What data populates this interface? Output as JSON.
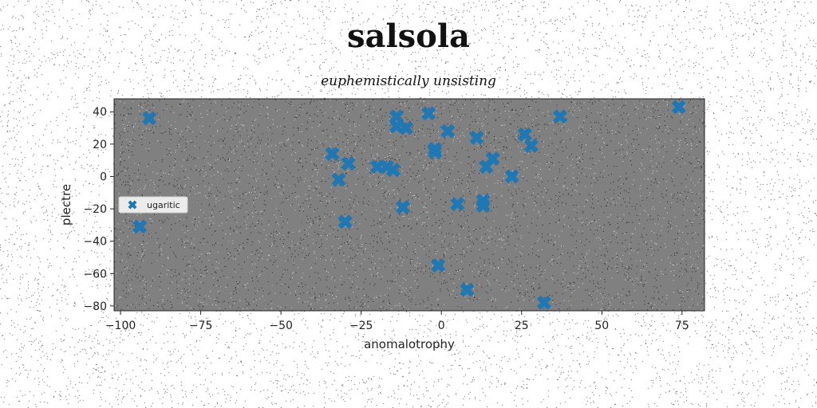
{
  "chart_data": {
    "type": "scatter",
    "title": "salsola",
    "subtitle": "euphemistically unsisting",
    "xlabel": "anomalotrophy",
    "ylabel": "plectre",
    "xlim": [
      -102,
      82
    ],
    "ylim": [
      -83,
      48
    ],
    "xticks": [
      -100,
      -75,
      -50,
      -25,
      0,
      25,
      50,
      75
    ],
    "yticks": [
      -80,
      -60,
      -40,
      -20,
      0,
      20,
      40
    ],
    "grid": false,
    "legend_position": "center-left",
    "series": [
      {
        "name": "ugaritic",
        "marker": "x-filled",
        "color": "#1f77b4",
        "points": [
          [
            -91,
            36
          ],
          [
            -94,
            -31
          ],
          [
            -34,
            14
          ],
          [
            -32,
            -2
          ],
          [
            -29,
            8
          ],
          [
            -30,
            -28
          ],
          [
            -20,
            6
          ],
          [
            -17,
            6
          ],
          [
            -15,
            4
          ],
          [
            -14,
            37
          ],
          [
            -14,
            31
          ],
          [
            -11,
            30
          ],
          [
            -12,
            -19
          ],
          [
            -4,
            39
          ],
          [
            -2,
            17
          ],
          [
            -2,
            15
          ],
          [
            2,
            28
          ],
          [
            -1,
            -55
          ],
          [
            5,
            -17
          ],
          [
            8,
            -70
          ],
          [
            11,
            24
          ],
          [
            13,
            -15
          ],
          [
            13,
            -18
          ],
          [
            14,
            6
          ],
          [
            16,
            11
          ],
          [
            22,
            0
          ],
          [
            26,
            26
          ],
          [
            28,
            19
          ],
          [
            32,
            -78
          ],
          [
            37,
            37
          ],
          [
            74,
            43
          ]
        ]
      }
    ],
    "colors": {
      "plot_background": "#808080",
      "marker": "#1f77b4",
      "page_background": "#ffffff"
    }
  }
}
